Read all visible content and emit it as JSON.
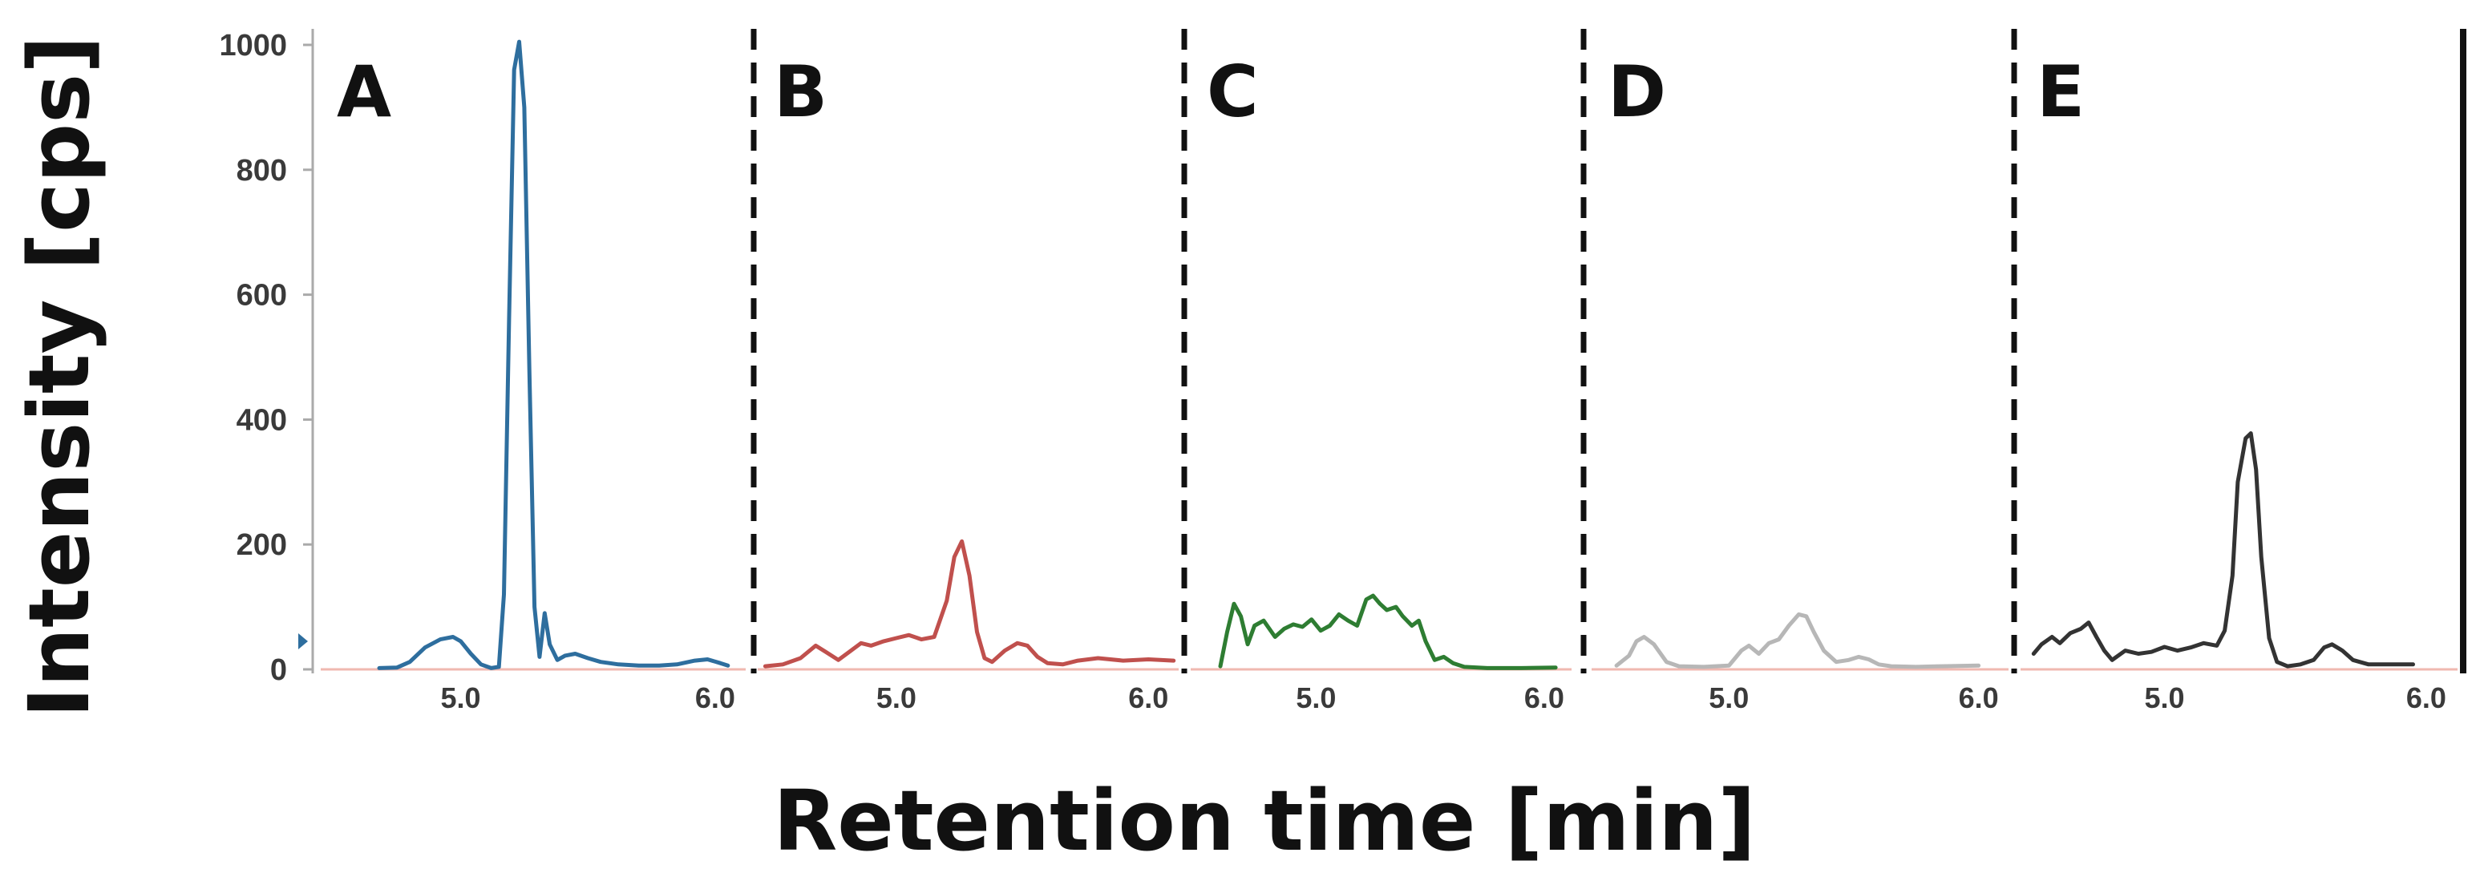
{
  "chart_data": {
    "type": "line",
    "xlabel": "Retention time [min]",
    "ylabel": "Intensity [cps]",
    "ylim": [
      0,
      1000
    ],
    "y_ticks": [
      "0",
      "200",
      "400",
      "600",
      "800",
      "1000"
    ],
    "grid": false,
    "panels": [
      {
        "label": "A",
        "color": "#2e6e9e",
        "xlim": [
          4.45,
          6.12
        ],
        "x_ticks": [
          "5.0",
          "6.0"
        ],
        "x_tick_values": [
          5.0,
          6.0
        ],
        "x": [
          4.68,
          4.75,
          4.8,
          4.86,
          4.92,
          4.97,
          5.0,
          5.04,
          5.08,
          5.12,
          5.15,
          5.17,
          5.19,
          5.21,
          5.23,
          5.25,
          5.27,
          5.29,
          5.31,
          5.33,
          5.35,
          5.38,
          5.41,
          5.45,
          5.5,
          5.55,
          5.62,
          5.7,
          5.78,
          5.85,
          5.92,
          5.97,
          6.02,
          6.05
        ],
        "y": [
          2,
          3,
          12,
          35,
          48,
          52,
          45,
          25,
          8,
          2,
          4,
          120,
          560,
          960,
          1005,
          900,
          480,
          100,
          20,
          90,
          40,
          15,
          22,
          25,
          18,
          12,
          8,
          6,
          6,
          8,
          14,
          16,
          10,
          6
        ]
      },
      {
        "label": "B",
        "color": "#c0504d",
        "xlim": [
          4.45,
          6.12
        ],
        "x_ticks": [
          "5.0",
          "6.0"
        ],
        "x_tick_values": [
          5.0,
          6.0
        ],
        "x": [
          4.48,
          4.55,
          4.62,
          4.68,
          4.72,
          4.77,
          4.82,
          4.86,
          4.9,
          4.95,
          5.0,
          5.05,
          5.1,
          5.15,
          5.2,
          5.23,
          5.26,
          5.29,
          5.32,
          5.35,
          5.38,
          5.43,
          5.48,
          5.52,
          5.56,
          5.6,
          5.66,
          5.72,
          5.8,
          5.9,
          6.0,
          6.1
        ],
        "y": [
          5,
          8,
          18,
          38,
          28,
          15,
          30,
          42,
          38,
          45,
          50,
          55,
          48,
          52,
          110,
          180,
          205,
          150,
          60,
          18,
          12,
          30,
          42,
          38,
          20,
          10,
          8,
          14,
          18,
          14,
          16,
          14
        ]
      },
      {
        "label": "C",
        "color": "#2e7d32",
        "xlim": [
          4.45,
          6.12
        ],
        "x_ticks": [
          "5.0",
          "6.0"
        ],
        "x_tick_values": [
          5.0,
          6.0
        ],
        "x": [
          4.58,
          4.61,
          4.64,
          4.67,
          4.7,
          4.73,
          4.77,
          4.82,
          4.86,
          4.9,
          4.94,
          4.98,
          5.02,
          5.06,
          5.1,
          5.14,
          5.18,
          5.22,
          5.25,
          5.28,
          5.31,
          5.35,
          5.38,
          5.42,
          5.45,
          5.48,
          5.52,
          5.56,
          5.6,
          5.65,
          5.75,
          5.9,
          6.05
        ],
        "y": [
          5,
          60,
          105,
          85,
          40,
          70,
          78,
          52,
          65,
          72,
          68,
          80,
          62,
          70,
          88,
          78,
          70,
          112,
          118,
          105,
          95,
          100,
          85,
          70,
          78,
          45,
          15,
          20,
          10,
          4,
          2,
          2,
          3
        ]
      },
      {
        "label": "D",
        "color": "#b7b7b7",
        "xlim": [
          4.45,
          6.12
        ],
        "x_ticks": [
          "5.0",
          "6.0"
        ],
        "x_tick_values": [
          5.0,
          6.0
        ],
        "x": [
          4.55,
          4.6,
          4.63,
          4.66,
          4.7,
          4.75,
          4.8,
          4.9,
          5.0,
          5.05,
          5.08,
          5.12,
          5.16,
          5.2,
          5.24,
          5.28,
          5.31,
          5.34,
          5.38,
          5.43,
          5.48,
          5.52,
          5.56,
          5.6,
          5.65,
          5.75,
          5.85,
          6.0
        ],
        "y": [
          6,
          22,
          45,
          52,
          40,
          12,
          5,
          4,
          6,
          30,
          38,
          25,
          42,
          48,
          70,
          88,
          85,
          60,
          30,
          12,
          15,
          20,
          16,
          8,
          5,
          4,
          5,
          6
        ]
      },
      {
        "label": "E",
        "color": "#333333",
        "xlim": [
          4.45,
          6.12
        ],
        "x_ticks": [
          "5.0",
          "6.0"
        ],
        "x_tick_values": [
          5.0,
          6.0
        ],
        "x": [
          4.5,
          4.53,
          4.57,
          4.6,
          4.64,
          4.68,
          4.71,
          4.74,
          4.77,
          4.8,
          4.85,
          4.9,
          4.95,
          5.0,
          5.05,
          5.1,
          5.15,
          5.2,
          5.23,
          5.26,
          5.28,
          5.31,
          5.33,
          5.35,
          5.37,
          5.4,
          5.43,
          5.47,
          5.52,
          5.57,
          5.61,
          5.64,
          5.68,
          5.72,
          5.78,
          5.85,
          5.95
        ],
        "y": [
          25,
          40,
          52,
          42,
          58,
          65,
          75,
          52,
          30,
          15,
          30,
          25,
          28,
          36,
          30,
          35,
          42,
          38,
          62,
          150,
          300,
          370,
          378,
          320,
          180,
          50,
          12,
          5,
          8,
          15,
          35,
          40,
          30,
          15,
          8,
          8,
          8
        ]
      }
    ]
  }
}
